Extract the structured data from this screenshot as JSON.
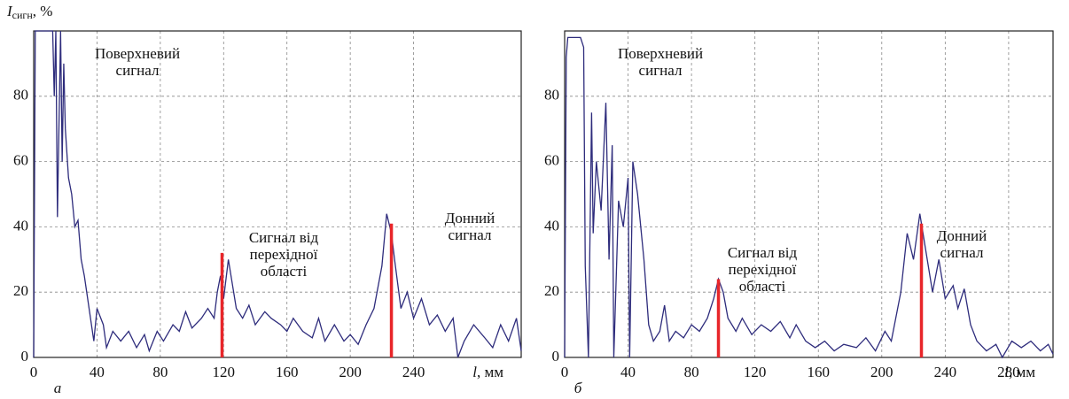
{
  "chart_data": [
    {
      "type": "line",
      "panel_label": "а",
      "y_label": {
        "var": "I",
        "sub": "сигн",
        "unit": ", %"
      },
      "x_label": {
        "var": "l",
        "unit": ", мм"
      },
      "xlim": [
        0,
        308
      ],
      "ylim": [
        0,
        100
      ],
      "xticks": [
        0,
        40,
        80,
        120,
        160,
        200,
        240
      ],
      "yticks": [
        0,
        20,
        40,
        60,
        80
      ],
      "grid": true,
      "annotations": [
        {
          "lines": [
            "Поверхневий",
            "сигнал"
          ]
        },
        {
          "lines": [
            "Сигнал від",
            "перехідної",
            "області"
          ]
        },
        {
          "lines": [
            "Донний",
            "сигнал"
          ]
        }
      ],
      "series": [
        {
          "color": "#2e2c7c",
          "x": [
            0,
            1,
            12,
            13,
            14,
            15,
            17,
            18,
            19,
            20,
            22,
            24,
            26,
            28,
            30,
            32,
            35,
            38,
            40,
            44,
            46,
            50,
            55,
            60,
            65,
            70,
            73,
            78,
            82,
            88,
            92,
            96,
            100,
            106,
            110,
            114,
            116,
            118,
            120,
            123,
            125,
            128,
            132,
            136,
            140,
            146,
            150,
            156,
            160,
            164,
            170,
            176,
            180,
            184,
            190,
            196,
            200,
            205,
            210,
            215,
            220,
            223,
            226,
            228,
            232,
            236,
            240,
            245,
            250,
            255,
            260,
            265,
            268,
            272,
            278,
            285,
            290,
            295,
            300,
            305,
            308
          ],
          "values": [
            0,
            100,
            100,
            80,
            100,
            43,
            100,
            60,
            90,
            70,
            55,
            50,
            40,
            42,
            30,
            25,
            15,
            5,
            15,
            10,
            3,
            8,
            5,
            8,
            3,
            7,
            2,
            8,
            5,
            10,
            8,
            14,
            9,
            12,
            15,
            12,
            20,
            25,
            18,
            30,
            24,
            15,
            12,
            16,
            10,
            14,
            12,
            10,
            8,
            12,
            8,
            6,
            12,
            5,
            10,
            5,
            7,
            4,
            10,
            15,
            28,
            44,
            38,
            30,
            15,
            20,
            12,
            18,
            10,
            13,
            8,
            12,
            0,
            5,
            10,
            6,
            3,
            10,
            5,
            12,
            2
          ]
        }
      ],
      "markers": {
        "color": "#e8262a",
        "x": [
          119,
          226
        ],
        "values": [
          32,
          41
        ]
      }
    },
    {
      "type": "line",
      "panel_label": "б",
      "x_label": {
        "var": "l",
        "unit": ", мм"
      },
      "xlim": [
        0,
        308
      ],
      "ylim": [
        0,
        100
      ],
      "xticks": [
        0,
        40,
        80,
        120,
        160,
        200,
        240,
        280
      ],
      "yticks": [
        0,
        20,
        40,
        60,
        80
      ],
      "grid": true,
      "annotations": [
        {
          "lines": [
            "Поверхневий",
            "сигнал"
          ]
        },
        {
          "lines": [
            "Сигнал від",
            "перехідної",
            "області"
          ]
        },
        {
          "lines": [
            "Донний",
            "сигнал"
          ]
        }
      ],
      "series": [
        {
          "color": "#2e2c7c",
          "x": [
            0,
            1,
            2,
            10,
            12,
            13,
            15,
            17,
            18,
            20,
            23,
            26,
            28,
            30,
            31,
            34,
            37,
            40,
            41,
            43,
            46,
            50,
            53,
            56,
            60,
            63,
            66,
            70,
            75,
            80,
            85,
            90,
            94,
            97,
            100,
            103,
            108,
            112,
            118,
            124,
            130,
            136,
            142,
            146,
            152,
            158,
            164,
            170,
            176,
            184,
            190,
            196,
            202,
            206,
            212,
            216,
            220,
            224,
            227,
            232,
            236,
            240,
            245,
            248,
            252,
            256,
            260,
            266,
            272,
            276,
            282,
            288,
            294,
            300,
            305,
            308
          ],
          "values": [
            0,
            92,
            98,
            98,
            95,
            28,
            0,
            75,
            38,
            60,
            45,
            78,
            30,
            65,
            0,
            48,
            40,
            55,
            0,
            60,
            50,
            30,
            10,
            5,
            8,
            16,
            5,
            8,
            6,
            10,
            8,
            12,
            18,
            24,
            20,
            12,
            8,
            12,
            7,
            10,
            8,
            11,
            6,
            10,
            5,
            3,
            5,
            2,
            4,
            3,
            6,
            2,
            8,
            5,
            20,
            38,
            30,
            44,
            35,
            20,
            30,
            18,
            22,
            15,
            21,
            10,
            5,
            2,
            4,
            0,
            5,
            3,
            5,
            2,
            4,
            1
          ]
        }
      ],
      "markers": {
        "color": "#e8262a",
        "x": [
          97,
          225
        ],
        "values": [
          24,
          41
        ]
      }
    }
  ]
}
